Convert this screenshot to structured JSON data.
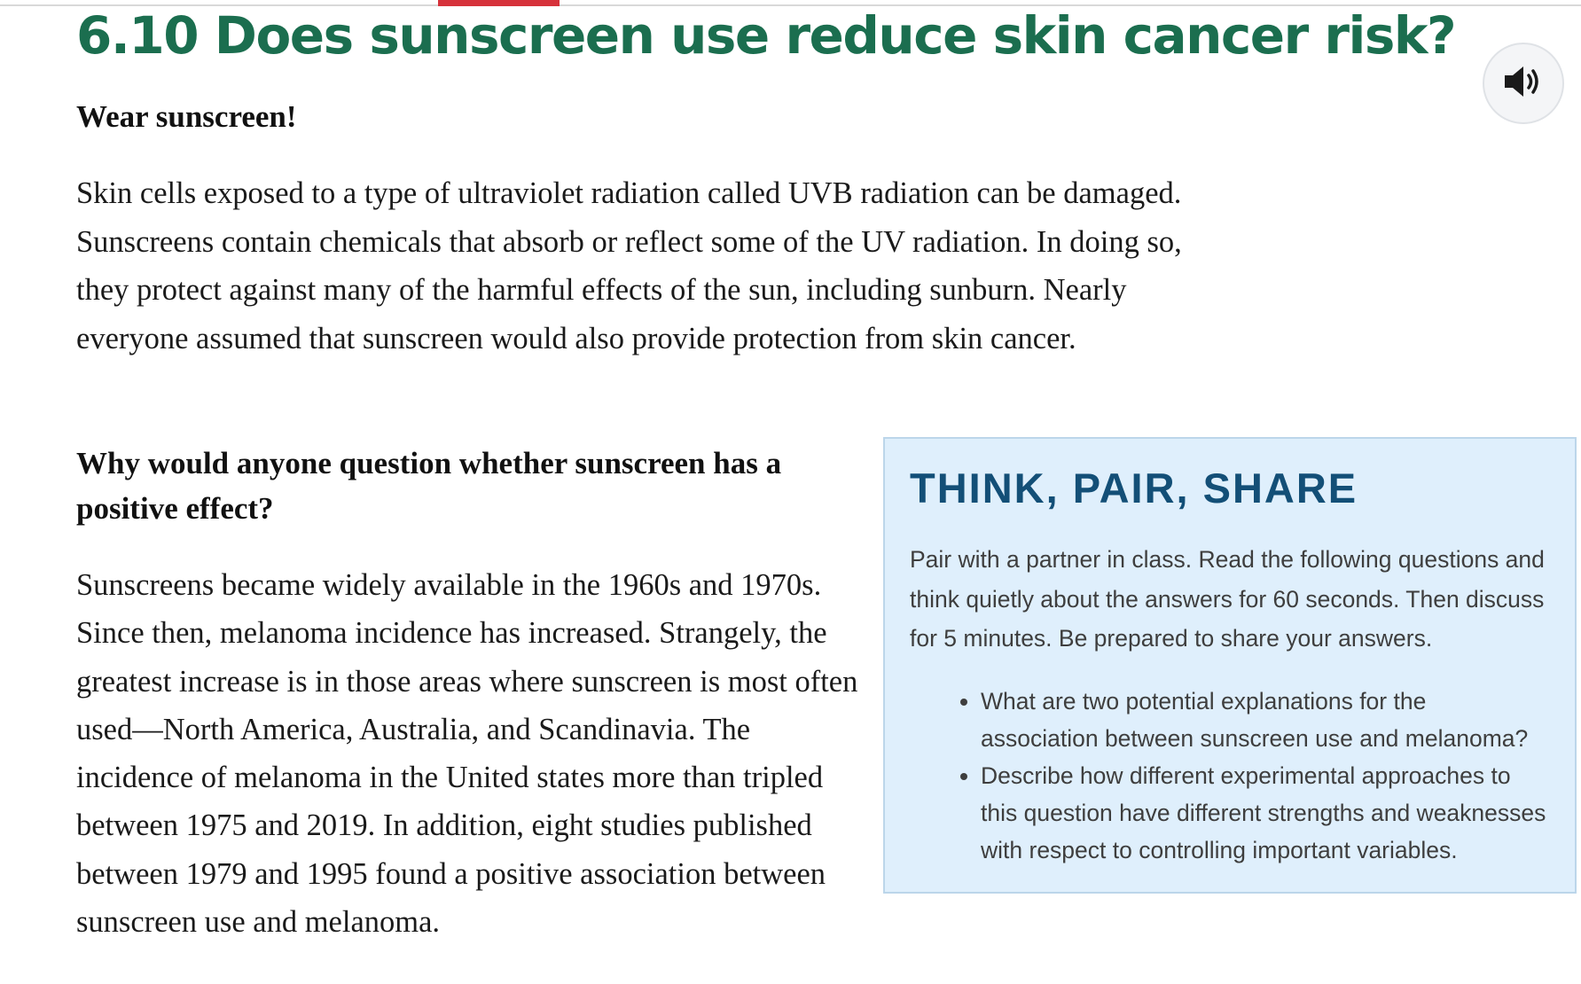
{
  "header": {
    "reading_progress": 0.08,
    "title": "6.10 Does sunscreen use reduce skin cancer risk?",
    "audio_icon": "speaker-volume-icon"
  },
  "main": {
    "subheading_1": "Wear sunscreen!",
    "paragraph_1": "Skin cells exposed to a type of ultraviolet radiation called UVB radiation can be damaged. Sunscreens contain chemicals that absorb or reflect some of the UV radiation. In doing so, they protect against many of the harmful effects of the sun, including sunburn. Nearly everyone assumed that sunscreen would also provide protection from skin cancer.",
    "subheading_2": "Why would anyone question whether sunscreen has a positive effect?",
    "paragraph_2": "Sunscreens became widely available in the 1960s and 1970s. Since then, melanoma incidence has increased. Strangely, the greatest increase is in those areas where sunscreen is most often used—North America, Australia, and Scandinavia. The incidence of melanoma in the United states more than tripled between 1975 and 2019. In addition, eight studies published between 1979 and 1995 found a positive association between sunscreen use and melanoma."
  },
  "think_pair_share": {
    "title": "THINK, PAIR, SHARE",
    "intro": "Pair with a partner in class. Read the following questions and think quietly about the answers for 60 seconds. Then discuss for 5 minutes. Be prepared to share your answers.",
    "questions": [
      "What are two potential explanations for the association between sunscreen use and melanoma?",
      "Describe how different experimental approaches to this question have different strengths and weaknesses with respect to controlling important variables."
    ]
  },
  "colors": {
    "title": "#1b6e4f",
    "progress": "#d6323b",
    "box_background": "#dfeffc",
    "box_title": "#134f77"
  }
}
